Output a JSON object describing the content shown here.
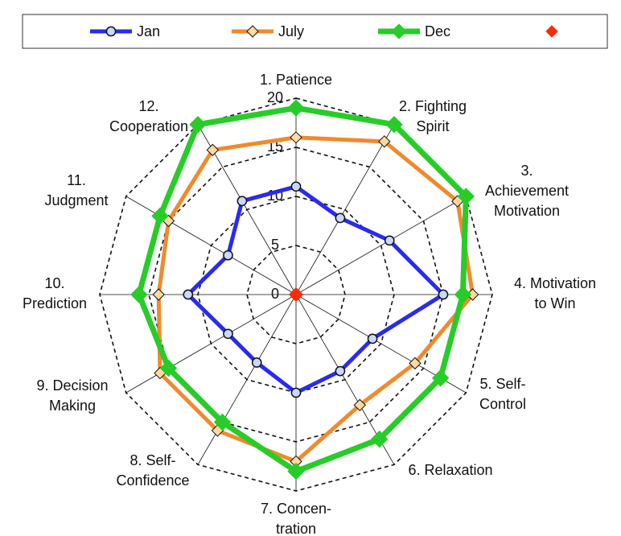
{
  "chart_data": {
    "type": "radar",
    "categories": [
      "1. Patience",
      "2. Fighting\nSpirit",
      "3.\nAchievement\nMotivation",
      "4. Motivation\nto Win",
      "5. Self-\nControl",
      "6. Relaxation",
      "7. Concen-\ntration",
      "8. Self-\nConfidence",
      "9. Decision\nMaking",
      "10.\nPrediction",
      "11.\nJudgment",
      "12.\nCooperation"
    ],
    "rlim": [
      0,
      20
    ],
    "rticks": [
      0,
      5,
      10,
      15,
      20
    ],
    "grid": true,
    "series": [
      {
        "name": "Jan",
        "color": "#2a2af0",
        "marker": "circle",
        "values": [
          11,
          9,
          11,
          15,
          9,
          9,
          10,
          8,
          8,
          11,
          8,
          11
        ]
      },
      {
        "name": "July",
        "color": "#f08a2c",
        "marker": "diamond",
        "values": [
          16,
          18,
          19,
          18,
          14,
          13,
          17,
          16,
          16,
          14,
          15,
          17
        ]
      },
      {
        "name": "Dec",
        "color": "#28cc28",
        "marker": "diamond",
        "values": [
          19,
          20,
          20,
          17,
          17,
          17,
          18,
          15,
          15,
          16,
          16,
          20
        ]
      },
      {
        "color": "#ff2a00",
        "marker": "diamond",
        "values": [
          0,
          0,
          0,
          0,
          0,
          0,
          0,
          0,
          0,
          0,
          0,
          0
        ]
      }
    ]
  }
}
